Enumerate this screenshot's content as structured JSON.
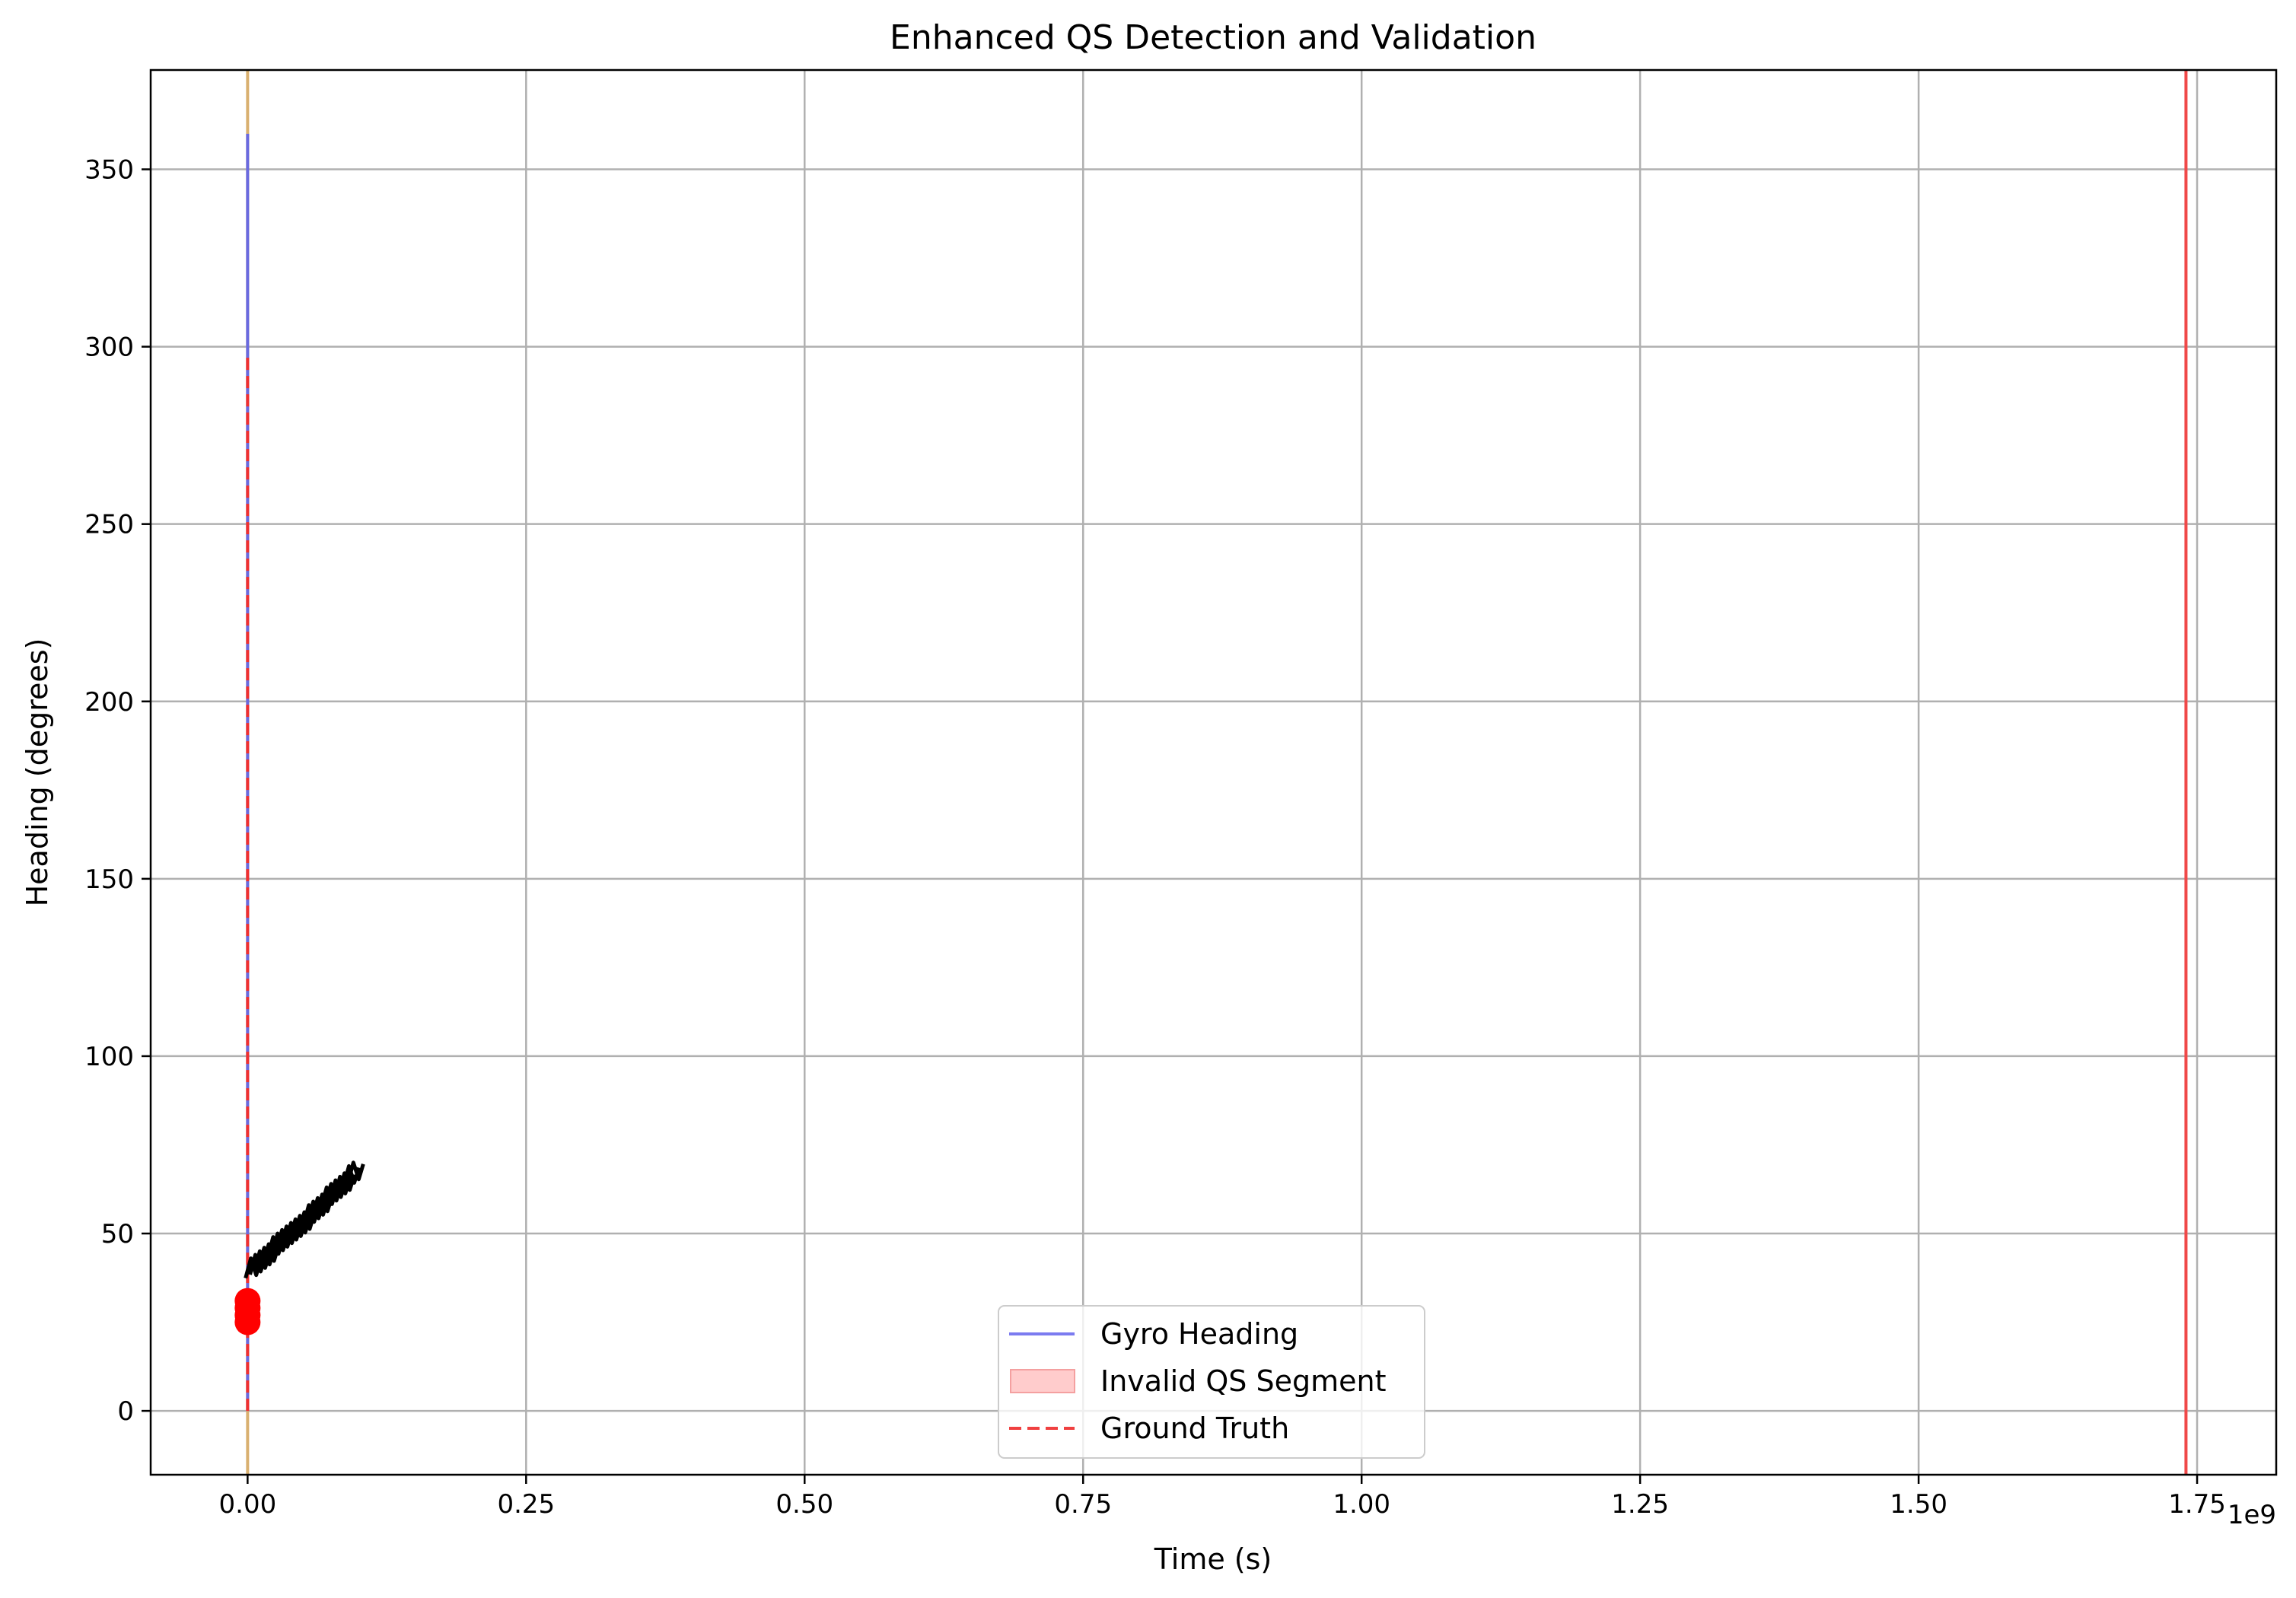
{
  "chart_data": {
    "type": "line",
    "title": "Enhanced QS Detection and Validation",
    "xlabel": "Time (s)",
    "ylabel": "Heading (degrees)",
    "x_offset_label": "1e9",
    "xlim": [
      -0.087,
      1.821
    ],
    "ylim": [
      -18,
      378
    ],
    "x_ticks": [
      0.0,
      0.25,
      0.5,
      0.75,
      1.0,
      1.25,
      1.5,
      1.75
    ],
    "x_tick_labels": [
      "0.00",
      "0.25",
      "0.50",
      "0.75",
      "1.00",
      "1.25",
      "1.50",
      "1.75"
    ],
    "y_ticks": [
      0,
      50,
      100,
      150,
      200,
      250,
      300,
      350
    ],
    "y_tick_labels": [
      "0",
      "50",
      "100",
      "150",
      "200",
      "250",
      "300",
      "350"
    ],
    "grid": true,
    "legend_position": "lower center",
    "legend": [
      {
        "name": "Gyro Heading",
        "kind": "line",
        "color": "#7b7bf0"
      },
      {
        "name": "Invalid QS Segment",
        "kind": "patch",
        "color": "#ffcccc"
      },
      {
        "name": "Ground Truth",
        "kind": "dashed-line",
        "color": "#f04040"
      }
    ],
    "series": [
      {
        "name": "Gyro Heading",
        "color": "#6a6ae0",
        "x": [
          0.0,
          0.0
        ],
        "y": [
          0,
          360
        ]
      },
      {
        "name": "Ground Truth",
        "color": "#f03030",
        "x": [
          0.0,
          0.0
        ],
        "y": [
          0,
          297
        ]
      }
    ],
    "vertical_lines": [
      {
        "x": 0.0,
        "color": "#d9b070"
      },
      {
        "x": 1.74,
        "color": "#f04848"
      }
    ],
    "markers": [
      {
        "x": 0.0,
        "y": 25,
        "color": "#ff0000"
      },
      {
        "x": 0.0,
        "y": 27,
        "color": "#ff0000"
      },
      {
        "x": 0.0,
        "y": 29,
        "color": "#ff0000"
      },
      {
        "x": 0.0,
        "y": 31,
        "color": "#ff0000"
      }
    ],
    "annotation_cluster": {
      "color": "#000000",
      "points": [
        {
          "x": 0.005,
          "y": 40
        },
        {
          "x": 0.009,
          "y": 41
        },
        {
          "x": 0.013,
          "y": 42
        },
        {
          "x": 0.017,
          "y": 43
        },
        {
          "x": 0.021,
          "y": 44
        },
        {
          "x": 0.025,
          "y": 46
        },
        {
          "x": 0.029,
          "y": 47
        },
        {
          "x": 0.033,
          "y": 48
        },
        {
          "x": 0.037,
          "y": 49
        },
        {
          "x": 0.041,
          "y": 50
        },
        {
          "x": 0.045,
          "y": 51
        },
        {
          "x": 0.049,
          "y": 52
        },
        {
          "x": 0.053,
          "y": 53
        },
        {
          "x": 0.057,
          "y": 55
        },
        {
          "x": 0.061,
          "y": 56
        },
        {
          "x": 0.065,
          "y": 57
        },
        {
          "x": 0.069,
          "y": 58
        },
        {
          "x": 0.073,
          "y": 60
        },
        {
          "x": 0.077,
          "y": 61
        },
        {
          "x": 0.081,
          "y": 62
        },
        {
          "x": 0.085,
          "y": 63
        },
        {
          "x": 0.089,
          "y": 64
        },
        {
          "x": 0.093,
          "y": 66
        },
        {
          "x": 0.097,
          "y": 67
        }
      ]
    }
  }
}
